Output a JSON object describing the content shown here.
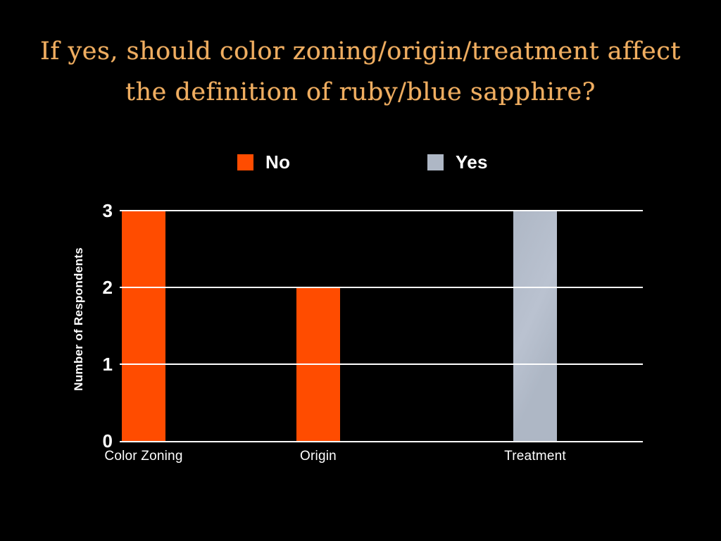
{
  "slide": {
    "background": "#000000",
    "title_line1": "If yes, should color zoning/origin/treatment affect",
    "title_line2": "the definition of ruby/blue sapphire?",
    "title_color": "#f0ae61",
    "text_color": "#ffffff"
  },
  "legend": {
    "items": [
      {
        "label": "No",
        "color": "#ff4c00"
      },
      {
        "label": "Yes",
        "color": "#aeb7c5"
      }
    ]
  },
  "chart_data": {
    "type": "bar",
    "title": "If yes, should color zoning/origin/treatment affect the definition of ruby/blue sapphire?",
    "xlabel": "",
    "ylabel": "Number of Respondents",
    "categories": [
      "Color Zoning",
      "Origin",
      "Treatment"
    ],
    "series": [
      {
        "name": "No",
        "color": "#ff4c00",
        "values": [
          3,
          2,
          null
        ]
      },
      {
        "name": "Yes",
        "color": "#aeb7c5",
        "values": [
          null,
          null,
          3
        ]
      }
    ],
    "bars": [
      {
        "category": "Color Zoning",
        "series": "No",
        "value": 3
      },
      {
        "category": "Origin",
        "series": "No",
        "value": 2
      },
      {
        "category": "Treatment",
        "series": "Yes",
        "value": 3
      }
    ],
    "ylim": [
      0,
      3
    ],
    "yticks": [
      0,
      1,
      2,
      3
    ],
    "grid": true,
    "gridline_color": "#ffffff",
    "background": "#000000",
    "legend_position": "top"
  }
}
